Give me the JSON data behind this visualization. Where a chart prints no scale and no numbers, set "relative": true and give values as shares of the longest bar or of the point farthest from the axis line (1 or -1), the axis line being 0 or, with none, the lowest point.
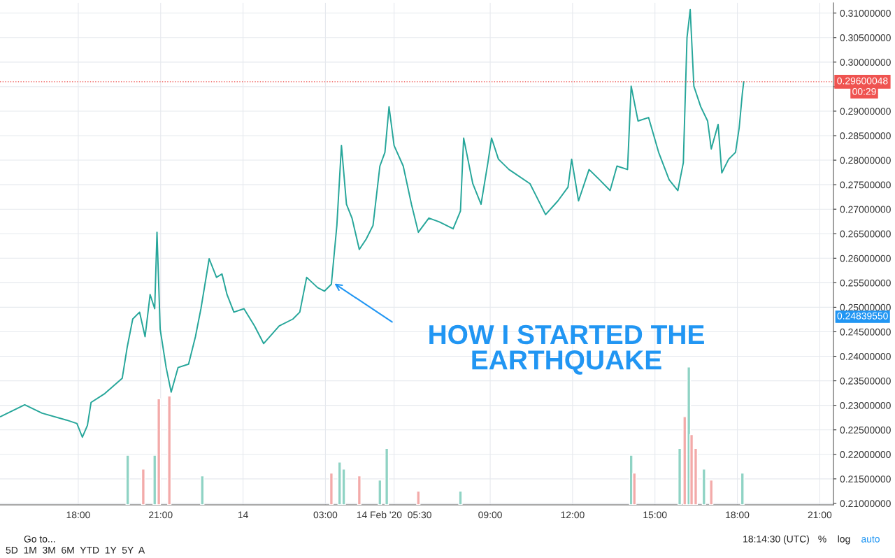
{
  "chart_data": [
    {
      "type": "line",
      "x": [
        "2020-02-13T15:10",
        "2020-02-13T16:03",
        "2020-02-13T16:41",
        "2020-02-13T17:34",
        "2020-02-13T17:57",
        "2020-02-13T18:09",
        "2020-02-13T18:20",
        "2020-02-13T18:28",
        "2020-02-13T18:58",
        "2020-02-13T19:36",
        "2020-02-13T19:47",
        "2020-02-13T19:59",
        "2020-02-13T20:14",
        "2020-02-13T20:26",
        "2020-02-13T20:37",
        "2020-02-13T20:47",
        "2020-02-13T20:52",
        "2020-02-13T20:59",
        "2020-02-13T21:12",
        "2020-02-13T21:23",
        "2020-02-13T21:38",
        "2020-02-13T22:01",
        "2020-02-13T22:16",
        "2020-02-13T22:28",
        "2020-02-13T22:46",
        "2020-02-13T23:02",
        "2020-02-13T23:14",
        "2020-02-13T23:25",
        "2020-02-13T23:40",
        "2020-02-14T00:02",
        "2020-02-14T00:25",
        "2020-02-14T00:45",
        "2020-02-14T01:19",
        "2020-02-14T01:49",
        "2020-02-14T02:04",
        "2020-02-14T02:19",
        "2020-02-14T02:43",
        "2020-02-14T02:58",
        "2020-02-14T03:13",
        "2020-02-14T03:25",
        "2020-02-14T03:35",
        "2020-02-14T03:46",
        "2020-02-14T03:58",
        "2020-02-14T04:14",
        "2020-02-14T04:29",
        "2020-02-14T04:44",
        "2020-02-14T04:59",
        "2020-02-14T05:10",
        "2020-02-14T05:19",
        "2020-02-14T05:30",
        "2020-02-14T05:50",
        "2020-02-14T06:08",
        "2020-02-14T06:23",
        "2020-02-14T06:46",
        "2020-02-14T07:09",
        "2020-02-14T07:39",
        "2020-02-14T07:55",
        "2020-02-14T08:02",
        "2020-02-14T08:22",
        "2020-02-14T08:40",
        "2020-02-14T08:55",
        "2020-02-14T09:03",
        "2020-02-14T09:18",
        "2020-02-14T09:41",
        "2020-02-14T10:27",
        "2020-02-14T11:01",
        "2020-02-14T11:28",
        "2020-02-14T11:50",
        "2020-02-14T11:58",
        "2020-02-14T12:13",
        "2020-02-14T12:36",
        "2020-02-14T12:59",
        "2020-02-14T13:22",
        "2020-02-14T13:37",
        "2020-02-14T14:00",
        "2020-02-14T14:08",
        "2020-02-14T14:23",
        "2020-02-14T14:46",
        "2020-02-14T15:08",
        "2020-02-14T15:31",
        "2020-02-14T15:50",
        "2020-02-14T16:02",
        "2020-02-14T16:10",
        "2020-02-14T16:17",
        "2020-02-14T16:25",
        "2020-02-14T16:40",
        "2020-02-14T16:55",
        "2020-02-14T17:03",
        "2020-02-14T17:18",
        "2020-02-14T17:26",
        "2020-02-14T17:41",
        "2020-02-14T17:56",
        "2020-02-14T18:04",
        "2020-02-14T18:11",
        "2020-02-14T18:14"
      ],
      "series": [
        {
          "color": "#26a69a",
          "values": [
            0.2277,
            0.2301,
            0.2284,
            0.227,
            0.2263,
            0.2235,
            0.2259,
            0.2306,
            0.2324,
            0.2355,
            0.2419,
            0.2476,
            0.249,
            0.244,
            0.2526,
            0.2497,
            0.2653,
            0.2455,
            0.2377,
            0.2327,
            0.2377,
            0.2384,
            0.244,
            0.2497,
            0.2599,
            0.2561,
            0.2568,
            0.2526,
            0.249,
            0.2497,
            0.2462,
            0.2426,
            0.2462,
            0.2476,
            0.249,
            0.2561,
            0.254,
            0.2533,
            0.2547,
            0.2667,
            0.283,
            0.271,
            0.2682,
            0.2618,
            0.2639,
            0.2667,
            0.2788,
            0.2816,
            0.2909,
            0.283,
            0.2788,
            0.271,
            0.2653,
            0.2682,
            0.2674,
            0.266,
            0.2696,
            0.2845,
            0.2752,
            0.271,
            0.2795,
            0.2845,
            0.2802,
            0.2781,
            0.2752,
            0.2689,
            0.2717,
            0.2745,
            0.2802,
            0.2717,
            0.2781,
            0.276,
            0.2738,
            0.2788,
            0.2781,
            0.2951,
            0.288,
            0.2887,
            0.2816,
            0.276,
            0.2738,
            0.2795,
            0.305,
            0.3107,
            0.2951,
            0.2909,
            0.288,
            0.2823,
            0.2873,
            0.2774,
            0.2802,
            0.2816,
            0.2866,
            0.2937,
            0.296
          ]
        }
      ],
      "xlim": [
        "2020-02-13T15:09",
        "2020-02-14T21:30"
      ],
      "xticks": [
        {
          "value": "2020-02-13T18:00",
          "label": "18:00"
        },
        {
          "value": "2020-02-13T21:00",
          "label": "21:00"
        },
        {
          "value": "2020-02-14T00:00",
          "label": "14"
        },
        {
          "value": "2020-02-14T03:00",
          "label": "03:00"
        },
        {
          "value": "2020-02-14T05:30",
          "label": "14 Feb '20  05:30"
        },
        {
          "value": "2020-02-14T09:00",
          "label": "09:00"
        },
        {
          "value": "2020-02-14T12:00",
          "label": "12:00"
        },
        {
          "value": "2020-02-14T15:00",
          "label": "15:00"
        },
        {
          "value": "2020-02-14T18:00",
          "label": "18:00"
        },
        {
          "value": "2020-02-14T21:00",
          "label": "21:00"
        }
      ],
      "ylim": [
        0.2097,
        0.3121
      ],
      "yticks": [
        {
          "value": 0.21,
          "label": "0.21000000"
        },
        {
          "value": 0.215,
          "label": "0.21500000"
        },
        {
          "value": 0.22,
          "label": "0.22000000"
        },
        {
          "value": 0.225,
          "label": "0.22500000"
        },
        {
          "value": 0.23,
          "label": "0.23000000"
        },
        {
          "value": 0.235,
          "label": "0.23500000"
        },
        {
          "value": 0.24,
          "label": "0.24000000"
        },
        {
          "value": 0.245,
          "label": "0.24500000"
        },
        {
          "value": 0.25,
          "label": "0.25000000"
        },
        {
          "value": 0.255,
          "label": "0.25500000"
        },
        {
          "value": 0.26,
          "label": "0.26000000"
        },
        {
          "value": 0.265,
          "label": "0.26500000"
        },
        {
          "value": 0.27,
          "label": "0.27000000"
        },
        {
          "value": 0.275,
          "label": "0.27500000"
        },
        {
          "value": 0.28,
          "label": "0.28000000"
        },
        {
          "value": 0.285,
          "label": "0.28500000"
        },
        {
          "value": 0.29,
          "label": "0.29000000"
        },
        {
          "value": 0.295,
          "label": null
        },
        {
          "value": 0.3,
          "label": "0.30000000"
        },
        {
          "value": 0.305,
          "label": "0.30500000"
        },
        {
          "value": 0.31,
          "label": "0.31000000"
        }
      ],
      "grid": true,
      "ref_lines": [
        {
          "axis": "y",
          "value": 0.29600048,
          "label": "0.29600048",
          "color": "#ef5350",
          "line_style": "dotted"
        }
      ],
      "annotations": [
        "HOW I STARTED THE\nEARTHQUAKE",
        "00:29",
        "Go to...",
        "5D  1M  3M  6M  YTD  1Y  5Y  A",
        "18:14:30 (UTC)",
        "%",
        "log",
        "auto",
        "0.24839550"
      ]
    },
    {
      "type": "bar",
      "relative": true,
      "tick_labels": false,
      "xlim": [
        "2020-02-13T15:09",
        "2020-02-14T21:30"
      ],
      "x": [
        "2020-02-13T19:48",
        "2020-02-13T20:22",
        "2020-02-13T20:47",
        "2020-02-13T20:56",
        "2020-02-13T21:19",
        "2020-02-13T22:31",
        "2020-02-14T03:13",
        "2020-02-14T03:31",
        "2020-02-14T03:40",
        "2020-02-14T04:14",
        "2020-02-14T04:59",
        "2020-02-14T05:14",
        "2020-02-14T06:23",
        "2020-02-14T07:55",
        "2020-02-14T14:08",
        "2020-02-14T14:15",
        "2020-02-14T15:54",
        "2020-02-14T16:05",
        "2020-02-14T16:14",
        "2020-02-14T16:20",
        "2020-02-14T16:29",
        "2020-02-14T16:47",
        "2020-02-14T17:03",
        "2020-02-14T18:11"
      ],
      "values": [
        0.36,
        0.26,
        0.36,
        0.77,
        0.79,
        0.21,
        0.23,
        0.31,
        0.26,
        0.21,
        0.18,
        0.41,
        0.1,
        0.1,
        0.36,
        0.23,
        0.41,
        0.64,
        1,
        0.51,
        0.41,
        0.26,
        0.18,
        0.23
      ],
      "colors": [
        "#8fd3c4",
        "#f3aaa9",
        "#8fd3c4",
        "#f3aaa9",
        "#f3aaa9",
        "#8fd3c4",
        "#f3aaa9",
        "#8fd3c4",
        "#8fd3c4",
        "#f3aaa9",
        "#8fd3c4",
        "#8fd3c4",
        "#f3aaa9",
        "#8fd3c4",
        "#8fd3c4",
        "#f3aaa9",
        "#8fd3c4",
        "#f3aaa9",
        "#8fd3c4",
        "#f3aaa9",
        "#f3aaa9",
        "#8fd3c4",
        "#f3aaa9",
        "#8fd3c4"
      ]
    }
  ]
}
